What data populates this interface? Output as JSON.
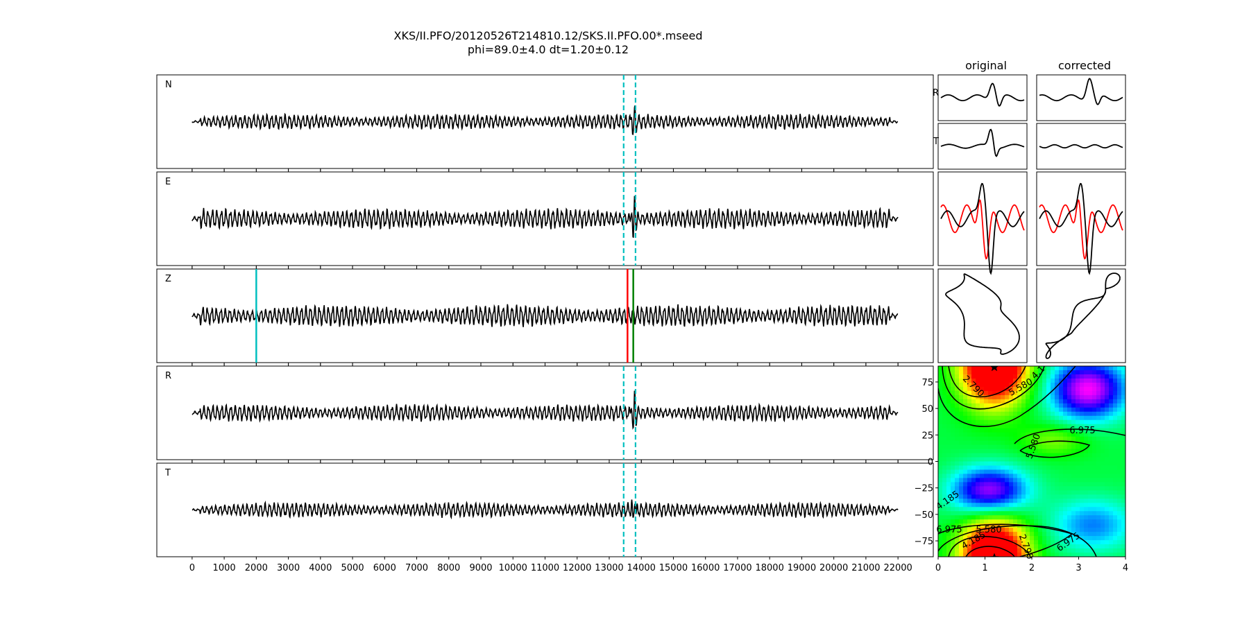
{
  "figure": {
    "title_line1": "XKS/II.PFO/20120526T214810.12/SKS.II.PFO.00*.mseed",
    "title_line2": "phi=89.0±4.0 dt=1.20±0.12"
  },
  "chart_data": [
    {
      "type": "line",
      "role": "seismogram traces",
      "traces": [
        "N",
        "E",
        "Z",
        "R",
        "T"
      ],
      "x_ticks": [
        0,
        1000,
        2000,
        3000,
        4000,
        5000,
        6000,
        7000,
        8000,
        9000,
        10000,
        11000,
        12000,
        13000,
        14000,
        15000,
        16000,
        17000,
        18000,
        19000,
        20000,
        21000,
        22000
      ],
      "xlim": [
        -1100,
        23100
      ],
      "data_range": [
        0,
        22000
      ],
      "window_marks": {
        "start": 13450,
        "end": 13820,
        "color": "#00bfbf",
        "style": "dashed",
        "panels": [
          "N",
          "E",
          "R",
          "T"
        ]
      },
      "pick_lines": [
        {
          "x": 2000,
          "color": "#00bfbf",
          "panel": "Z"
        },
        {
          "x": 13570,
          "color": "#ff0000",
          "panel": "Z"
        },
        {
          "x": 13750,
          "color": "#008000",
          "panel": "Z"
        }
      ]
    },
    {
      "type": "line",
      "role": "comparison panels",
      "columns": [
        "original",
        "corrected"
      ],
      "row_labels": [
        "R",
        "T"
      ],
      "rows": [
        "R component",
        "T component",
        "overlay (red / black)",
        "particle motion"
      ]
    },
    {
      "type": "heatmap",
      "role": "misfit grid with contours",
      "xlim": [
        0,
        4
      ],
      "ylim": [
        -90,
        90
      ],
      "x_ticks": [
        "0",
        "1",
        "2",
        "3",
        "4"
      ],
      "y_ticks": [
        "75",
        "50",
        "25",
        "0",
        "−25",
        "−50",
        "−75"
      ],
      "minima": [
        {
          "x": 1.2,
          "y": 89
        },
        {
          "x": 1.2,
          "y": -91
        }
      ],
      "maxima": [
        {
          "x": 3.2,
          "y": 68
        },
        {
          "x": 1.1,
          "y": -28
        }
      ],
      "contour_labels": [
        "2.790",
        "4.185",
        "5.580",
        "6.975",
        "5.580",
        "5.580",
        "6.975",
        "4.185",
        "2.790",
        "6.975",
        "4.1"
      ]
    }
  ]
}
